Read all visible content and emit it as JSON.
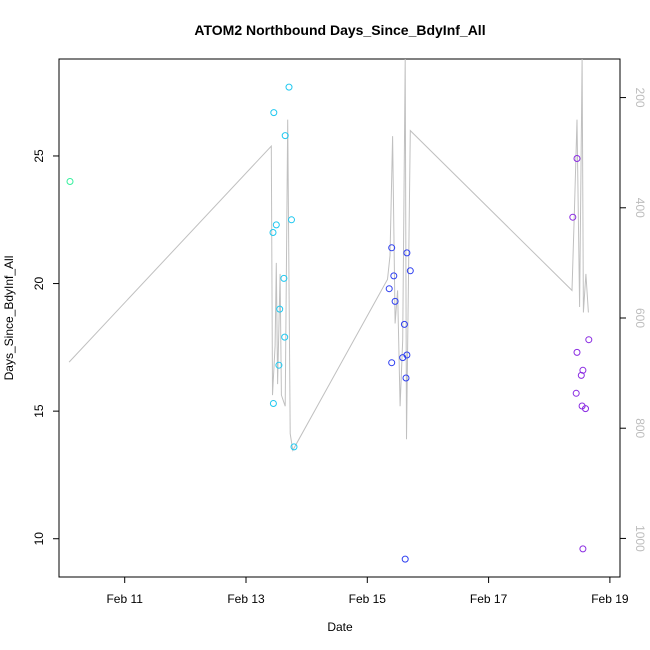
{
  "chart_data": {
    "type": "scatter",
    "title": "ATOM2 Northbound Days_Since_BdyInf_All",
    "xlabel": "Date",
    "ylabel": "Days_Since_BdyInf_All",
    "xlim": [
      "2024-02-09 22:00",
      "2024-02-19 04:00"
    ],
    "ylim": [
      8.5,
      28.8
    ],
    "y2lim": [
      1070,
      130
    ],
    "x_ticks": [
      {
        "label": "Feb 11",
        "x": "2024-02-11"
      },
      {
        "label": "Feb 13",
        "x": "2024-02-13"
      },
      {
        "label": "Feb 15",
        "x": "2024-02-15"
      },
      {
        "label": "Feb 17",
        "x": "2024-02-17"
      },
      {
        "label": "Feb 19",
        "x": "2024-02-19"
      }
    ],
    "y_ticks": [
      10,
      15,
      20,
      25
    ],
    "y2_ticks": [
      200,
      400,
      600,
      800,
      1000
    ],
    "grid": false,
    "points": [
      {
        "x": "2024-02-10 02:20",
        "y": 24.0,
        "color": "#35f09e"
      },
      {
        "x": "2024-02-13 11:00",
        "y": 26.7,
        "color": "#1fc8f0"
      },
      {
        "x": "2024-02-13 17:00",
        "y": 27.7,
        "color": "#1fc8f0"
      },
      {
        "x": "2024-02-13 15:30",
        "y": 25.8,
        "color": "#1fc8f0"
      },
      {
        "x": "2024-02-13 12:00",
        "y": 22.3,
        "color": "#1fc8f0"
      },
      {
        "x": "2024-02-13 10:40",
        "y": 22.0,
        "color": "#1fc8f0"
      },
      {
        "x": "2024-02-13 18:00",
        "y": 22.5,
        "color": "#1fc8f0"
      },
      {
        "x": "2024-02-13 15:00",
        "y": 20.2,
        "color": "#1fc8f0"
      },
      {
        "x": "2024-02-13 13:20",
        "y": 19.0,
        "color": "#1fc8f0"
      },
      {
        "x": "2024-02-13 15:20",
        "y": 17.9,
        "color": "#1fc8f0"
      },
      {
        "x": "2024-02-13 13:00",
        "y": 16.8,
        "color": "#1fc8f0"
      },
      {
        "x": "2024-02-13 10:50",
        "y": 15.3,
        "color": "#1fc8f0"
      },
      {
        "x": "2024-02-13 19:00",
        "y": 13.6,
        "color": "#1fc8f0"
      },
      {
        "x": "2024-02-15 09:40",
        "y": 21.4,
        "color": "#2e3ff0"
      },
      {
        "x": "2024-02-15 15:40",
        "y": 21.2,
        "color": "#2e3ff0"
      },
      {
        "x": "2024-02-15 10:30",
        "y": 20.3,
        "color": "#2e3ff0"
      },
      {
        "x": "2024-02-15 17:00",
        "y": 20.5,
        "color": "#2e3ff0"
      },
      {
        "x": "2024-02-15 08:40",
        "y": 19.8,
        "color": "#2e3ff0"
      },
      {
        "x": "2024-02-15 11:00",
        "y": 19.3,
        "color": "#2e3ff0"
      },
      {
        "x": "2024-02-15 14:40",
        "y": 18.4,
        "color": "#2e3ff0"
      },
      {
        "x": "2024-02-15 15:40",
        "y": 17.2,
        "color": "#2e3ff0"
      },
      {
        "x": "2024-02-15 14:00",
        "y": 17.1,
        "color": "#2e3ff0"
      },
      {
        "x": "2024-02-15 09:40",
        "y": 16.9,
        "color": "#2e3ff0"
      },
      {
        "x": "2024-02-15 15:20",
        "y": 16.3,
        "color": "#2e3ff0"
      },
      {
        "x": "2024-02-15 15:00",
        "y": 9.2,
        "color": "#2e3ff0"
      },
      {
        "x": "2024-02-18 11:00",
        "y": 24.9,
        "color": "#8a2be2"
      },
      {
        "x": "2024-02-18 09:20",
        "y": 22.6,
        "color": "#8a2be2"
      },
      {
        "x": "2024-02-18 15:40",
        "y": 17.8,
        "color": "#8a2be2"
      },
      {
        "x": "2024-02-18 11:00",
        "y": 17.3,
        "color": "#8a2be2"
      },
      {
        "x": "2024-02-18 13:20",
        "y": 16.6,
        "color": "#8a2be2"
      },
      {
        "x": "2024-02-18 12:40",
        "y": 16.4,
        "color": "#8a2be2"
      },
      {
        "x": "2024-02-18 10:40",
        "y": 15.7,
        "color": "#8a2be2"
      },
      {
        "x": "2024-02-18 13:00",
        "y": 15.2,
        "color": "#8a2be2"
      },
      {
        "x": "2024-02-18 14:20",
        "y": 15.1,
        "color": "#8a2be2"
      },
      {
        "x": "2024-02-18 13:20",
        "y": 9.6,
        "color": "#8a2be2"
      }
    ],
    "line_series": {
      "axis": "right",
      "color": "#c0c0c0",
      "points": [
        {
          "x": "2024-02-10 02:00",
          "y2": 680
        },
        {
          "x": "2024-02-13 10:00",
          "y2": 288
        },
        {
          "x": "2024-02-13 10:30",
          "y2": 740
        },
        {
          "x": "2024-02-13 11:30",
          "y2": 650
        },
        {
          "x": "2024-02-13 12:00",
          "y2": 500
        },
        {
          "x": "2024-02-13 12:30",
          "y2": 720
        },
        {
          "x": "2024-02-13 13:30",
          "y2": 520
        },
        {
          "x": "2024-02-13 14:00",
          "y2": 740
        },
        {
          "x": "2024-02-13 15:30",
          "y2": 760
        },
        {
          "x": "2024-02-13 16:30",
          "y2": 240
        },
        {
          "x": "2024-02-13 17:30",
          "y2": 810
        },
        {
          "x": "2024-02-13 18:30",
          "y2": 840
        },
        {
          "x": "2024-02-15 08:00",
          "y2": 530
        },
        {
          "x": "2024-02-15 09:00",
          "y2": 487
        },
        {
          "x": "2024-02-15 10:00",
          "y2": 270
        },
        {
          "x": "2024-02-15 11:00",
          "y2": 610
        },
        {
          "x": "2024-02-15 12:00",
          "y2": 550
        },
        {
          "x": "2024-02-15 13:00",
          "y2": 760
        },
        {
          "x": "2024-02-15 14:00",
          "y2": 640
        },
        {
          "x": "2024-02-15 15:00",
          "y2": 130
        },
        {
          "x": "2024-02-15 15:30",
          "y2": 820
        },
        {
          "x": "2024-02-15 17:00",
          "y2": 260
        },
        {
          "x": "2024-02-18 09:00",
          "y2": 550
        },
        {
          "x": "2024-02-18 10:00",
          "y2": 400
        },
        {
          "x": "2024-02-18 11:00",
          "y2": 240
        },
        {
          "x": "2024-02-18 12:00",
          "y2": 580
        },
        {
          "x": "2024-02-18 13:00",
          "y2": 130
        },
        {
          "x": "2024-02-18 13:30",
          "y2": 590
        },
        {
          "x": "2024-02-18 14:30",
          "y2": 520
        },
        {
          "x": "2024-02-18 15:30",
          "y2": 590
        }
      ]
    }
  }
}
